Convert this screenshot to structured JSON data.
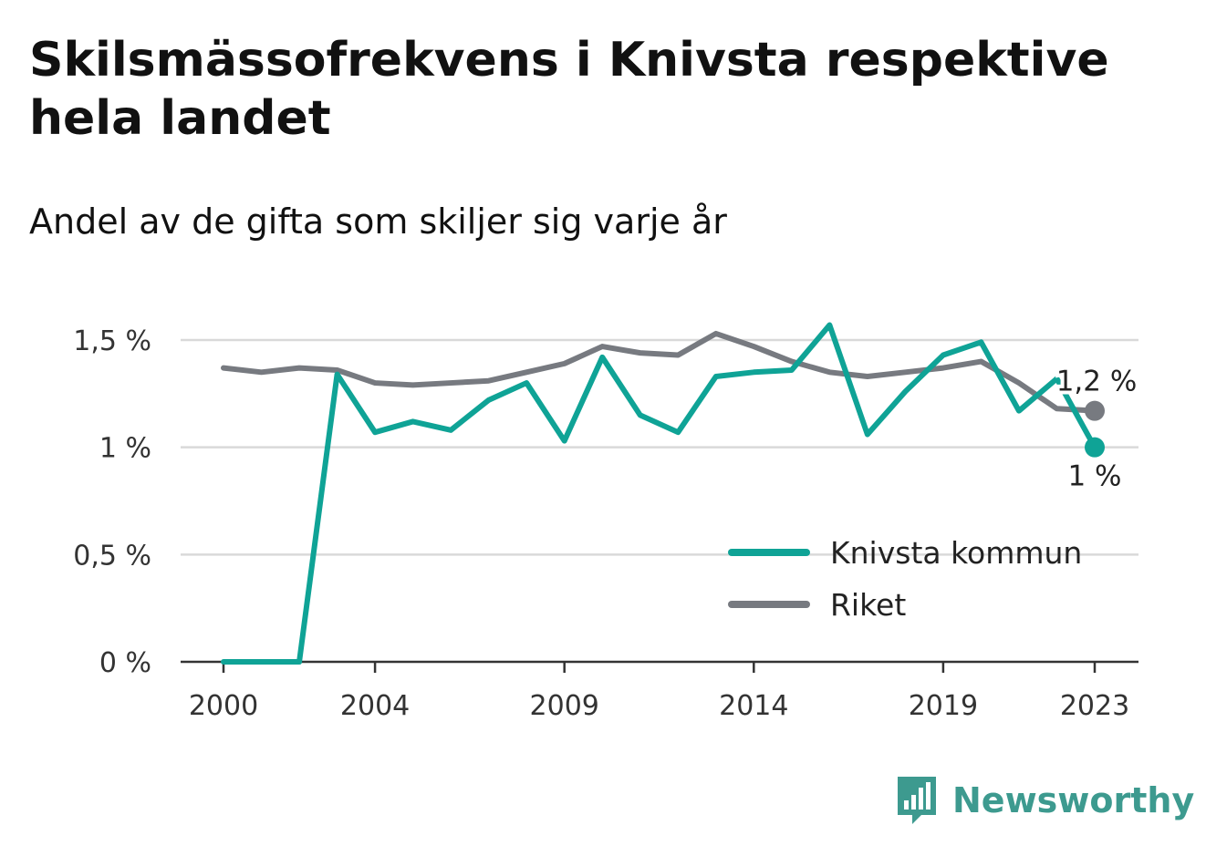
{
  "header": {
    "title": "Skilsmässofrekvens i Knivsta respektive hela landet",
    "subtitle": "Andel av de gifta som skiljer sig varje år"
  },
  "brand": {
    "name": "Newsworthy",
    "icon": "newsworthy-chart-icon",
    "color": "#3d9a8f"
  },
  "chart_data": {
    "type": "line",
    "x": [
      2000,
      2001,
      2002,
      2003,
      2004,
      2005,
      2006,
      2007,
      2008,
      2009,
      2010,
      2011,
      2012,
      2013,
      2014,
      2015,
      2016,
      2017,
      2018,
      2019,
      2020,
      2021,
      2022,
      2023
    ],
    "xticks": [
      2000,
      2004,
      2009,
      2014,
      2019,
      2023
    ],
    "xtick_labels": [
      "2000",
      "2004",
      "2009",
      "2014",
      "2019",
      "2023"
    ],
    "yticks": [
      0,
      0.5,
      1,
      1.5
    ],
    "ytick_labels": [
      "0 %",
      "0,5 %",
      "1 %",
      "1,5 %"
    ],
    "ylim": [
      0,
      1.5
    ],
    "grid": true,
    "legend_position": "bottom-right",
    "series": [
      {
        "name": "Knivsta kommun",
        "color": "#0fa396",
        "values": [
          0,
          0,
          0,
          1.34,
          1.07,
          1.12,
          1.08,
          1.22,
          1.3,
          1.03,
          1.42,
          1.15,
          1.07,
          1.33,
          1.35,
          1.36,
          1.57,
          1.06,
          1.26,
          1.43,
          1.49,
          1.17,
          1.32,
          1.0
        ],
        "end_label": "1 %"
      },
      {
        "name": "Riket",
        "color": "#777a80",
        "values": [
          1.37,
          1.35,
          1.37,
          1.36,
          1.3,
          1.29,
          1.3,
          1.31,
          1.35,
          1.39,
          1.47,
          1.44,
          1.43,
          1.53,
          1.47,
          1.4,
          1.35,
          1.33,
          1.35,
          1.37,
          1.4,
          1.3,
          1.18,
          1.17
        ],
        "end_label": "1,2 %"
      }
    ]
  }
}
